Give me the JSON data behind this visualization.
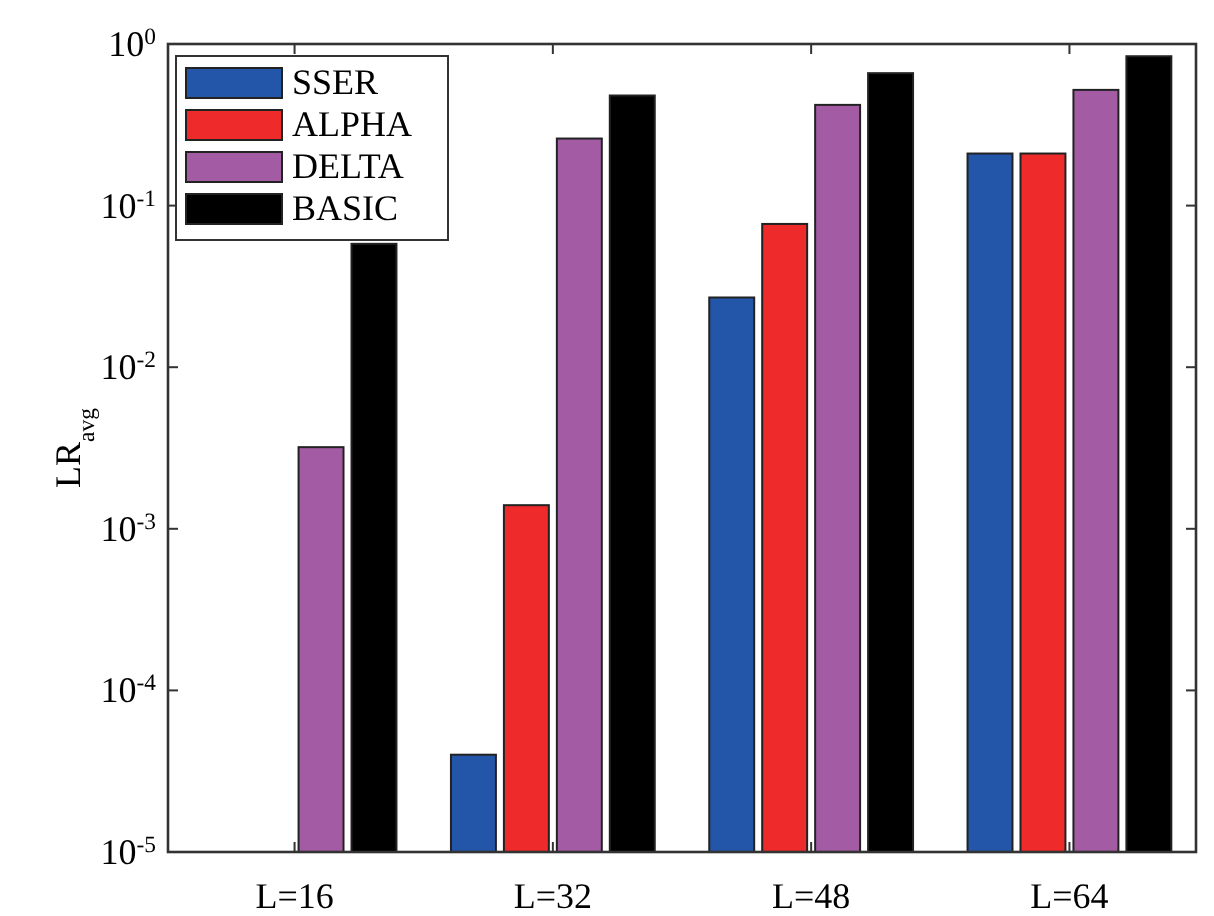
{
  "chart_data": {
    "type": "bar",
    "ylabel": "LR$_{avg}$",
    "categories": [
      "L=16",
      "L=32",
      "L=48",
      "L=64"
    ],
    "log": true,
    "ylim": [
      1e-05,
      1
    ],
    "yticks": [
      {
        "value": 1e-05,
        "label": "10$^{-5}$"
      },
      {
        "value": 0.0001,
        "label": "10$^{-4}$"
      },
      {
        "value": 0.001,
        "label": "10$^{-3}$"
      },
      {
        "value": 0.01,
        "label": "10$^{-2}$"
      },
      {
        "value": 0.1,
        "label": "10$^{-1}$"
      },
      {
        "value": 1,
        "label": "10$^{0}$"
      }
    ],
    "legend": "top left",
    "grid": false,
    "series": [
      {
        "name": "SSER",
        "color": "#2356a8",
        "values": [
          null,
          4e-05,
          0.027,
          0.21
        ]
      },
      {
        "name": "ALPHA",
        "color": "#ee2a2a",
        "values": [
          null,
          0.0014,
          0.077,
          0.21
        ]
      },
      {
        "name": "DELTA",
        "color": "#a35ba3",
        "values": [
          0.0032,
          0.26,
          0.42,
          0.52
        ]
      },
      {
        "name": "BASIC",
        "color": "#000000",
        "values": [
          0.058,
          0.48,
          0.66,
          0.84
        ]
      }
    ]
  }
}
